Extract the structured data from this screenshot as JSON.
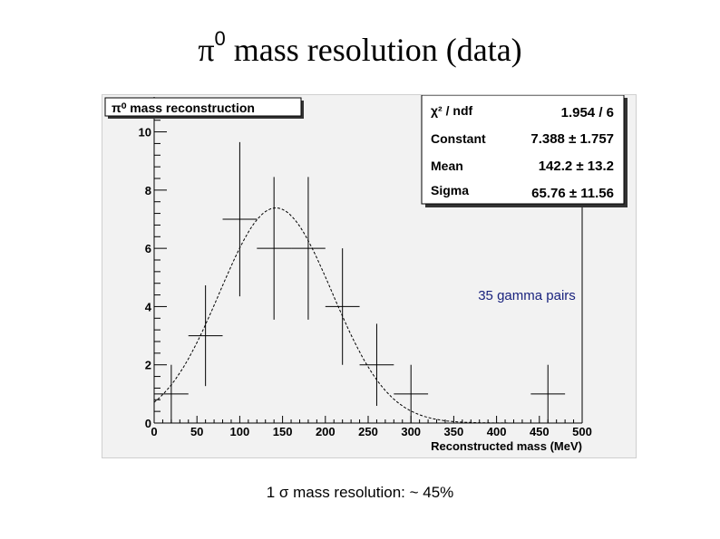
{
  "slide": {
    "title_symbol": "π",
    "title_superscript": "0",
    "title_text": "mass resolution (data)",
    "footnote": "1 σ mass resolution:  ~ 45%"
  },
  "chart_data": {
    "type": "histogram",
    "title": "π⁰ mass reconstruction",
    "xlabel": "Reconstructed mass (MeV)",
    "ylabel": "",
    "xlim": [
      0,
      500
    ],
    "ylim": [
      0,
      11.2
    ],
    "x_ticks": [
      "0",
      "50",
      "100",
      "150",
      "200",
      "250",
      "300",
      "350",
      "400",
      "450",
      "500"
    ],
    "y_ticks": [
      "0",
      "2",
      "4",
      "6",
      "8",
      "10"
    ],
    "bin_width": 40,
    "points": [
      {
        "x": 20,
        "y": 1,
        "err": 1
      },
      {
        "x": 60,
        "y": 3,
        "err": 1.73
      },
      {
        "x": 100,
        "y": 7,
        "err": 2.65
      },
      {
        "x": 140,
        "y": 6,
        "err": 2.45
      },
      {
        "x": 180,
        "y": 6,
        "err": 2.45
      },
      {
        "x": 220,
        "y": 4,
        "err": 2
      },
      {
        "x": 260,
        "y": 2,
        "err": 1.41
      },
      {
        "x": 300,
        "y": 1,
        "err": 1
      },
      {
        "x": 460,
        "y": 1,
        "err": 1
      }
    ],
    "fit": {
      "function": "gaus",
      "constant": 7.388,
      "mean": 142.2,
      "sigma": 65.76
    },
    "stats": [
      {
        "label": "χ² / ndf",
        "value": "1.954 / 6"
      },
      {
        "label": "Constant",
        "value": "7.388 ± 1.757"
      },
      {
        "label": "Mean",
        "value": "142.2 ± 13.2"
      },
      {
        "label": "Sigma",
        "value": "65.76 ± 11.56"
      }
    ],
    "annotation": "35 gamma pairs"
  }
}
